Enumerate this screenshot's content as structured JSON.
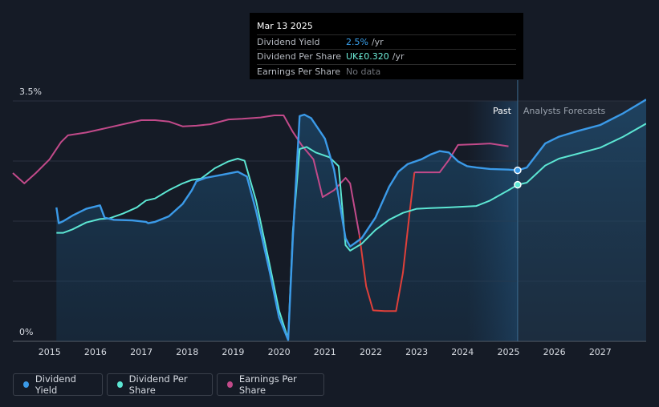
{
  "tooltip": {
    "date": "Mar 13 2025",
    "rows": [
      {
        "label": "Dividend Yield",
        "value": "2.5%",
        "unit": "/yr",
        "color": "#3ba3f0"
      },
      {
        "label": "Dividend Per Share",
        "value": "UK£0.320",
        "unit": "/yr",
        "color": "#6ff0dc"
      },
      {
        "label": "Earnings Per Share",
        "value": "No data",
        "unit": "",
        "color": "#6f737a"
      }
    ]
  },
  "legend": [
    {
      "label": "Dividend Yield",
      "color": "#3b9ae8"
    },
    {
      "label": "Dividend Per Share",
      "color": "#5ce6d3"
    },
    {
      "label": "Earnings Per Share",
      "color": "#c24a8a"
    }
  ],
  "chart_data": {
    "type": "line",
    "y_tick_labels": [
      "3.5%",
      "0%"
    ],
    "ylim": [
      0,
      3.5
    ],
    "x_ticks": [
      "2015",
      "2016",
      "2017",
      "2018",
      "2019",
      "2020",
      "2021",
      "2022",
      "2023",
      "2024",
      "2025",
      "2026",
      "2027"
    ],
    "xlim": [
      2014.2,
      2028.0
    ],
    "regions": {
      "past_label": "Past",
      "forecast_label": "Analysts Forecasts",
      "past_band_start": 2024.1,
      "divider": 2025.2
    },
    "colors": {
      "dividend_yield": "#3b9ae8",
      "dividend_per_share": "#5ce6d3",
      "earnings_per_share": "#c24a8a",
      "eps_negative_drop": "#e0403a"
    },
    "series": [
      {
        "name": "Dividend Yield",
        "key": "dividend_yield",
        "points": [
          [
            2015.15,
            1.95
          ],
          [
            2015.2,
            1.72
          ],
          [
            2015.3,
            1.75
          ],
          [
            2015.5,
            1.83
          ],
          [
            2015.8,
            1.93
          ],
          [
            2016.1,
            1.98
          ],
          [
            2016.2,
            1.8
          ],
          [
            2016.4,
            1.77
          ],
          [
            2016.8,
            1.76
          ],
          [
            2017.1,
            1.74
          ],
          [
            2017.15,
            1.72
          ],
          [
            2017.3,
            1.74
          ],
          [
            2017.6,
            1.82
          ],
          [
            2017.9,
            2.0
          ],
          [
            2018.1,
            2.2
          ],
          [
            2018.2,
            2.33
          ],
          [
            2018.4,
            2.38
          ],
          [
            2018.8,
            2.43
          ],
          [
            2019.1,
            2.47
          ],
          [
            2019.3,
            2.4
          ],
          [
            2019.5,
            1.9
          ],
          [
            2019.8,
            1.0
          ],
          [
            2020.0,
            0.35
          ],
          [
            2020.2,
            0.02
          ],
          [
            2020.3,
            1.5
          ],
          [
            2020.45,
            3.28
          ],
          [
            2020.55,
            3.3
          ],
          [
            2020.7,
            3.25
          ],
          [
            2021.0,
            2.95
          ],
          [
            2021.2,
            2.5
          ],
          [
            2021.45,
            1.5
          ],
          [
            2021.55,
            1.38
          ],
          [
            2021.8,
            1.5
          ],
          [
            2022.1,
            1.8
          ],
          [
            2022.4,
            2.25
          ],
          [
            2022.6,
            2.47
          ],
          [
            2022.8,
            2.58
          ],
          [
            2023.1,
            2.65
          ],
          [
            2023.3,
            2.72
          ],
          [
            2023.5,
            2.77
          ],
          [
            2023.7,
            2.75
          ],
          [
            2023.9,
            2.62
          ],
          [
            2024.1,
            2.55
          ],
          [
            2024.3,
            2.53
          ],
          [
            2024.6,
            2.51
          ],
          [
            2025.0,
            2.5
          ],
          [
            2025.2,
            2.49
          ],
          [
            2025.4,
            2.53
          ],
          [
            2025.8,
            2.88
          ],
          [
            2026.1,
            2.98
          ],
          [
            2026.5,
            3.06
          ],
          [
            2027.0,
            3.15
          ],
          [
            2027.5,
            3.32
          ],
          [
            2028.0,
            3.52
          ]
        ]
      },
      {
        "name": "Dividend Per Share",
        "key": "dividend_per_share",
        "points": [
          [
            2015.15,
            1.58
          ],
          [
            2015.3,
            1.58
          ],
          [
            2015.5,
            1.63
          ],
          [
            2015.8,
            1.73
          ],
          [
            2016.1,
            1.78
          ],
          [
            2016.3,
            1.79
          ],
          [
            2016.6,
            1.86
          ],
          [
            2016.9,
            1.95
          ],
          [
            2017.1,
            2.05
          ],
          [
            2017.3,
            2.08
          ],
          [
            2017.6,
            2.2
          ],
          [
            2017.9,
            2.3
          ],
          [
            2018.1,
            2.35
          ],
          [
            2018.3,
            2.37
          ],
          [
            2018.6,
            2.52
          ],
          [
            2018.9,
            2.62
          ],
          [
            2019.1,
            2.66
          ],
          [
            2019.25,
            2.63
          ],
          [
            2019.5,
            2.05
          ],
          [
            2019.8,
            1.1
          ],
          [
            2020.0,
            0.45
          ],
          [
            2020.2,
            0.03
          ],
          [
            2020.3,
            1.6
          ],
          [
            2020.45,
            2.8
          ],
          [
            2020.6,
            2.83
          ],
          [
            2020.8,
            2.75
          ],
          [
            2021.1,
            2.68
          ],
          [
            2021.3,
            2.55
          ],
          [
            2021.45,
            1.4
          ],
          [
            2021.55,
            1.32
          ],
          [
            2021.8,
            1.42
          ],
          [
            2022.1,
            1.62
          ],
          [
            2022.4,
            1.77
          ],
          [
            2022.7,
            1.87
          ],
          [
            2023.0,
            1.93
          ],
          [
            2023.3,
            1.94
          ],
          [
            2023.7,
            1.95
          ],
          [
            2024.0,
            1.96
          ],
          [
            2024.3,
            1.97
          ],
          [
            2024.6,
            2.05
          ],
          [
            2025.0,
            2.2
          ],
          [
            2025.2,
            2.28
          ],
          [
            2025.4,
            2.31
          ],
          [
            2025.8,
            2.56
          ],
          [
            2026.1,
            2.66
          ],
          [
            2026.5,
            2.73
          ],
          [
            2027.0,
            2.82
          ],
          [
            2027.5,
            2.98
          ],
          [
            2028.0,
            3.17
          ]
        ]
      },
      {
        "name": "Earnings Per Share",
        "key": "earnings_per_share",
        "points": [
          [
            2014.2,
            2.45
          ],
          [
            2014.45,
            2.3
          ],
          [
            2014.7,
            2.45
          ],
          [
            2015.0,
            2.65
          ],
          [
            2015.25,
            2.9
          ],
          [
            2015.4,
            3.0
          ],
          [
            2015.8,
            3.04
          ],
          [
            2016.2,
            3.1
          ],
          [
            2016.6,
            3.16
          ],
          [
            2017.0,
            3.22
          ],
          [
            2017.3,
            3.22
          ],
          [
            2017.6,
            3.2
          ],
          [
            2017.9,
            3.13
          ],
          [
            2018.2,
            3.14
          ],
          [
            2018.5,
            3.16
          ],
          [
            2018.9,
            3.23
          ],
          [
            2019.2,
            3.24
          ],
          [
            2019.6,
            3.26
          ],
          [
            2019.9,
            3.29
          ],
          [
            2020.1,
            3.29
          ],
          [
            2020.3,
            3.05
          ],
          [
            2020.5,
            2.85
          ],
          [
            2020.75,
            2.65
          ],
          [
            2020.95,
            2.1
          ],
          [
            2021.2,
            2.2
          ],
          [
            2021.45,
            2.38
          ],
          [
            2021.55,
            2.3
          ],
          [
            2021.75,
            1.55
          ],
          [
            2021.9,
            0.8
          ],
          [
            2022.05,
            0.45
          ],
          [
            2022.3,
            0.44
          ],
          [
            2022.55,
            0.44
          ],
          [
            2022.7,
            1.0
          ],
          [
            2022.85,
            1.9
          ],
          [
            2022.95,
            2.46
          ],
          [
            2023.2,
            2.46
          ],
          [
            2023.5,
            2.46
          ],
          [
            2023.7,
            2.64
          ],
          [
            2023.9,
            2.86
          ],
          [
            2024.3,
            2.87
          ],
          [
            2024.6,
            2.88
          ],
          [
            2025.0,
            2.84
          ]
        ]
      }
    ],
    "highlight_points": [
      {
        "series": "Dividend Yield",
        "x": 2025.2,
        "y": 2.49
      },
      {
        "series": "Dividend Per Share",
        "x": 2025.2,
        "y": 2.28
      }
    ]
  }
}
